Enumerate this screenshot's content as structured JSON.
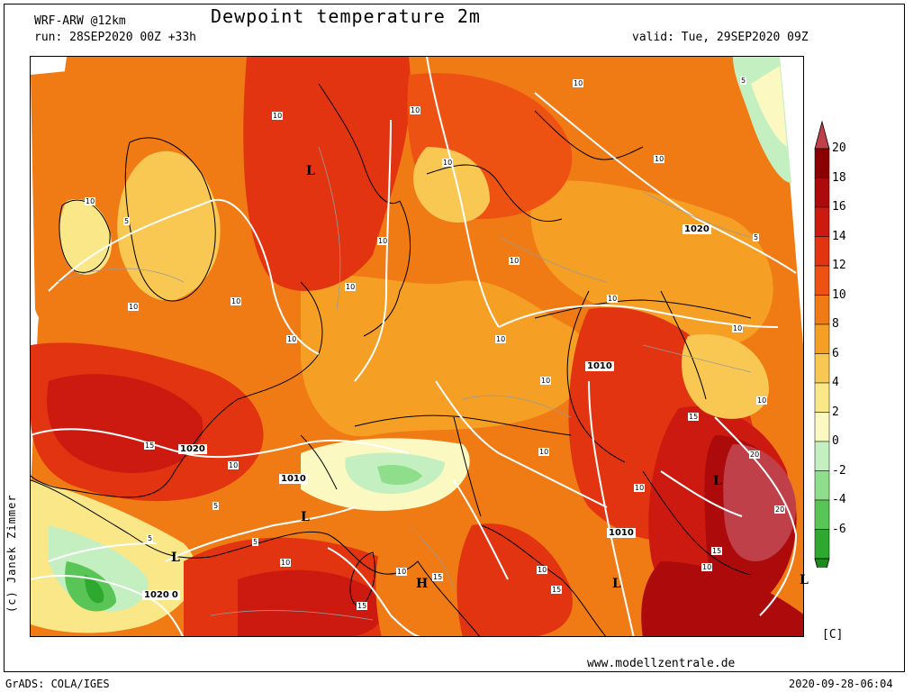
{
  "header": {
    "title": "Dewpoint temperature 2m",
    "model": "WRF-ARW @12km",
    "run": "run: 28SEP2020 00Z +33h",
    "valid": "valid: Tue, 29SEP2020 09Z"
  },
  "footer": {
    "copyright": "(c) Janek Zimmer",
    "website": "www.modellzentrale.de",
    "software": "GrADS: COLA/IGES",
    "timestamp": "2020-09-28-06:04"
  },
  "legend": {
    "unit": "[C]",
    "labels": [
      "20",
      "18",
      "16",
      "14",
      "12",
      "10",
      "8",
      "6",
      "4",
      "2",
      "0",
      "-2",
      "-4",
      "-6"
    ],
    "colors": [
      "#8b0000",
      "#ad0b0b",
      "#cc1a10",
      "#e23410",
      "#ee5212",
      "#f07a14",
      "#f5a025",
      "#f8c852",
      "#fae788",
      "#fbf8c2",
      "#c4efc0",
      "#8fde8c",
      "#58c556",
      "#2ea82e"
    ],
    "top_color": "#c0404a",
    "bottom_color": "#1a8a1a"
  },
  "map": {
    "isobar_labels": [
      "1020",
      "1010",
      "1020",
      "1020",
      "1010",
      "1010",
      "1020"
    ],
    "pressure_systems": [
      "L",
      "L",
      "L",
      "L",
      "L",
      "L",
      "H"
    ],
    "contour_labels": [
      "10",
      "10",
      "10",
      "10",
      "10",
      "10",
      "10",
      "10",
      "10",
      "10",
      "10",
      "10",
      "10",
      "10",
      "10",
      "10",
      "10",
      "10",
      "10",
      "10",
      "10",
      "10",
      "10",
      "10",
      "5",
      "5",
      "5",
      "5",
      "5",
      "5",
      "15",
      "15",
      "15",
      "15",
      "15",
      "15",
      "20",
      "20"
    ]
  }
}
